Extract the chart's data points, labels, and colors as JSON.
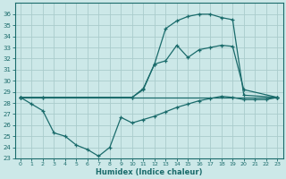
{
  "xlabel": "Humidex (Indice chaleur)",
  "bg_color": "#cce8e8",
  "line_color": "#1a6b6b",
  "grid_color": "#aacccc",
  "xlim": [
    -0.5,
    23.5
  ],
  "ylim": [
    23,
    37
  ],
  "yticks": [
    23,
    24,
    25,
    26,
    27,
    28,
    29,
    30,
    31,
    32,
    33,
    34,
    35,
    36
  ],
  "xticks": [
    0,
    1,
    2,
    3,
    4,
    5,
    6,
    7,
    8,
    9,
    10,
    11,
    12,
    13,
    14,
    15,
    16,
    17,
    18,
    19,
    20,
    21,
    22,
    23
  ],
  "series": [
    {
      "x": [
        0,
        2,
        10,
        11,
        12,
        13,
        14,
        15,
        16,
        17,
        18,
        19,
        20,
        23
      ],
      "y": [
        28.5,
        28.5,
        28.5,
        29.3,
        31.5,
        34.7,
        35.4,
        35.8,
        36.0,
        36.0,
        35.7,
        35.5,
        28.7,
        28.5
      ]
    },
    {
      "x": [
        0,
        2,
        10,
        11,
        12,
        13,
        14,
        15,
        16,
        17,
        18,
        19,
        20,
        23
      ],
      "y": [
        28.5,
        28.5,
        28.5,
        29.2,
        31.5,
        31.8,
        33.2,
        32.1,
        32.8,
        33.0,
        33.2,
        33.1,
        29.2,
        28.5
      ]
    },
    {
      "x": [
        0,
        23
      ],
      "y": [
        28.5,
        28.5
      ]
    },
    {
      "x": [
        0,
        1,
        2,
        3,
        4,
        5,
        6,
        7,
        8,
        9,
        10,
        11,
        12,
        13,
        14,
        15,
        16,
        17,
        18,
        19,
        20,
        21,
        22,
        23
      ],
      "y": [
        28.5,
        27.9,
        27.3,
        25.3,
        25.0,
        24.2,
        23.8,
        23.2,
        24.0,
        26.7,
        26.2,
        26.5,
        26.8,
        27.2,
        27.6,
        27.9,
        28.2,
        28.4,
        28.6,
        28.5,
        28.3,
        28.3,
        28.3,
        28.5
      ]
    }
  ]
}
